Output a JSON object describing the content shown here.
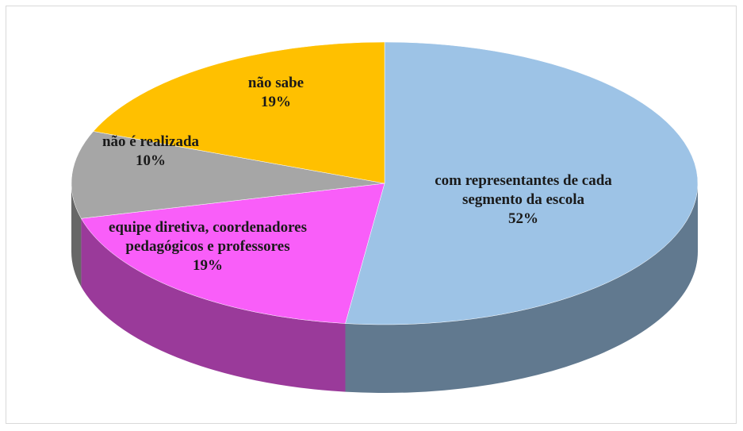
{
  "chart_data": {
    "type": "pie",
    "categories": [
      "com representantes de cada segmento da escola",
      "equipe diretiva, coordenadores pedagógicos e professores",
      "não é realizada",
      "não sabe"
    ],
    "values": [
      52,
      19,
      10,
      19
    ],
    "value_labels": [
      "52%",
      "19%",
      "10%",
      "19%"
    ],
    "colors": [
      "#9dc3e6",
      "#f95ef9",
      "#a6a6a6",
      "#ffc000"
    ]
  }
}
